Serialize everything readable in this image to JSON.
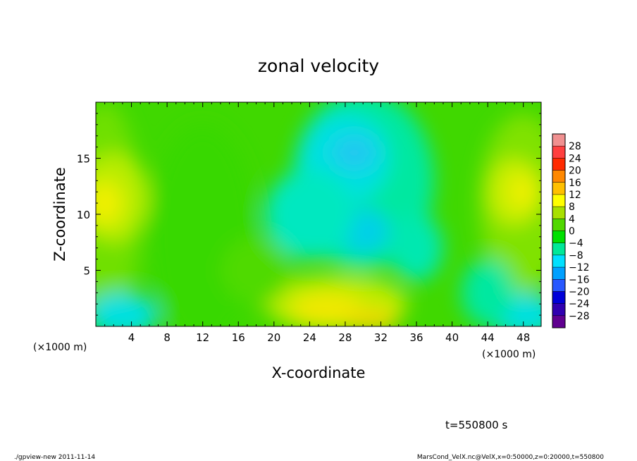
{
  "chart_data": {
    "type": "heatmap",
    "title": "zonal velocity",
    "xlabel": "X-coordinate",
    "ylabel": "Z-coordinate",
    "x_unit_left": "(×1000 m)",
    "x_unit_right": "(×1000 m)",
    "xlim": [
      0,
      50
    ],
    "ylim": [
      0,
      20
    ],
    "xticks": [
      "4",
      "8",
      "12",
      "16",
      "20",
      "24",
      "28",
      "32",
      "36",
      "40",
      "44",
      "48"
    ],
    "xtick_values": [
      4,
      8,
      12,
      16,
      20,
      24,
      28,
      32,
      36,
      40,
      44,
      48
    ],
    "yticks": [
      "5",
      "10",
      "15"
    ],
    "ytick_values": [
      5,
      10,
      15
    ],
    "colorbar": {
      "labels": [
        "28",
        "24",
        "20",
        "16",
        "12",
        "8",
        "4",
        "0",
        "−4",
        "−8",
        "−12",
        "−16",
        "−20",
        "−24",
        "−28"
      ],
      "levels": [
        28,
        24,
        20,
        16,
        12,
        8,
        4,
        0,
        -4,
        -8,
        -12,
        -16,
        -20,
        -24,
        -28
      ],
      "colors": [
        "#f09090",
        "#ff4040",
        "#ff2a00",
        "#ff8800",
        "#ffc000",
        "#ffff00",
        "#a8e000",
        "#50d800",
        "#00e000",
        "#00e898",
        "#00e0ff",
        "#00a0ff",
        "#2858ff",
        "#0000d8",
        "#3000b0",
        "#600090"
      ]
    },
    "field_description": "u(x,z) approx: yellow (8–12) near x=0–4 and x=44–48 at z=10–13; cyan (−6 to −10) at x=22–32, z=8–17; yellow (6–10) at x=22–34 near z=0–3; cyan near corners at z=0–2",
    "annotation_time": "t=550800 s",
    "footer_left": "./gpview-new  2011-11-14",
    "footer_right": "MarsCond_VelX.nc@VelX,x=0:50000,z=0:20000,t=550800"
  }
}
